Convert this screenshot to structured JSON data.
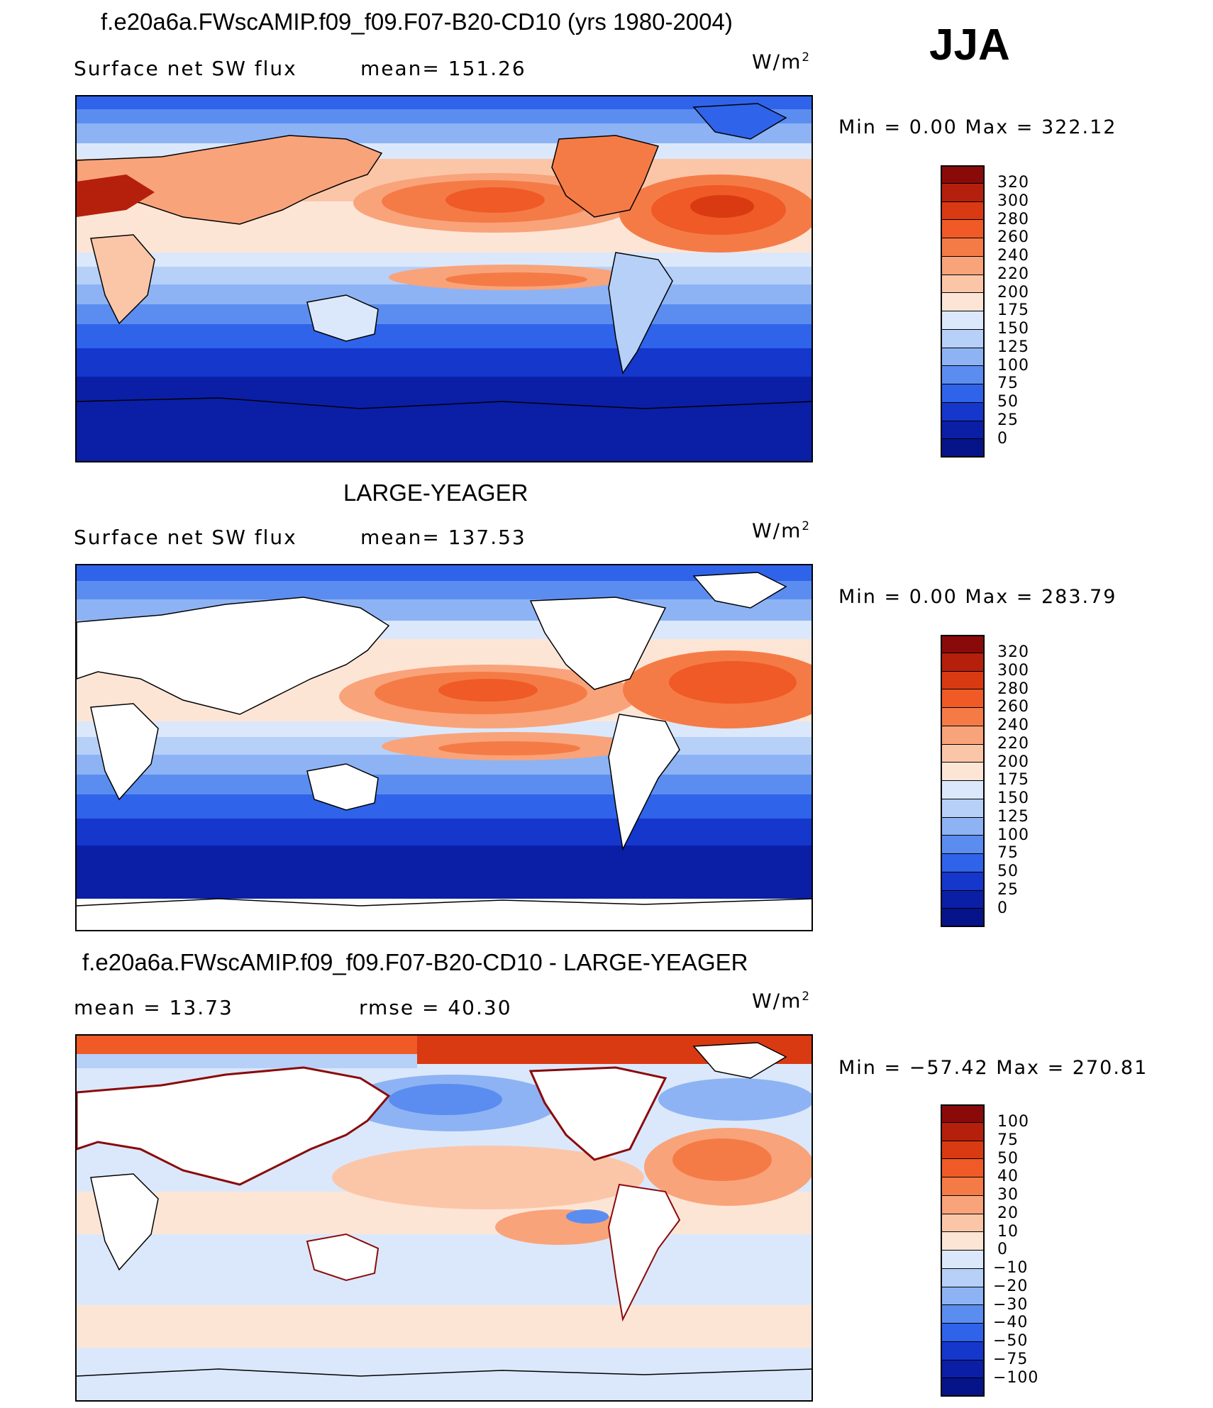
{
  "header": {
    "season": "JJA"
  },
  "panels": [
    {
      "title": "f.e20a6a.FWscAMIP.f09_f09.F07-B20-CD10 (yrs 1980-2004)",
      "left_label": "Surface  net  SW  flux",
      "stat_label": "mean=  151.26",
      "units": "W/m",
      "units_sup": "2",
      "minmax": "Min  =     0.00  Max  =  322.12",
      "colorbar": {
        "labels": [
          "320",
          "300",
          "280",
          "260",
          "240",
          "220",
          "200",
          "175",
          "150",
          "125",
          "100",
          "75",
          "50",
          "25",
          "0"
        ],
        "colors": [
          "#8a0a0a",
          "#b4200b",
          "#d93a12",
          "#ef5a26",
          "#f57b46",
          "#f9a37a",
          "#fbc6a8",
          "#fde5d6",
          "#dbe8fb",
          "#b6d0f8",
          "#8db3f4",
          "#5b8df0",
          "#2f63ea",
          "#1537cc",
          "#0a1fa6",
          "#061489"
        ]
      }
    },
    {
      "title": "LARGE-YEAGER",
      "left_label": "Surface  net  SW  flux",
      "stat_label": "mean=  137.53",
      "units": "W/m",
      "units_sup": "2",
      "minmax": "Min  =     0.00  Max  =  283.79",
      "colorbar": {
        "labels": [
          "320",
          "300",
          "280",
          "260",
          "240",
          "220",
          "200",
          "175",
          "150",
          "125",
          "100",
          "75",
          "50",
          "25",
          "0"
        ],
        "colors": [
          "#8a0a0a",
          "#b4200b",
          "#d93a12",
          "#ef5a26",
          "#f57b46",
          "#f9a37a",
          "#fbc6a8",
          "#fde5d6",
          "#dbe8fb",
          "#b6d0f8",
          "#8db3f4",
          "#5b8df0",
          "#2f63ea",
          "#1537cc",
          "#0a1fa6",
          "#061489"
        ]
      }
    },
    {
      "title": "f.e20a6a.FWscAMIP.f09_f09.F07-B20-CD10 - LARGE-YEAGER",
      "left_label": "mean  =     13.73",
      "stat_label": "rmse  =     40.30",
      "units": "W/m",
      "units_sup": "2",
      "minmax": "Min  = −57.42  Max  =  270.81",
      "colorbar": {
        "labels": [
          "100",
          "75",
          "50",
          "40",
          "30",
          "20",
          "10",
          "0",
          "−10",
          "−20",
          "−30",
          "−40",
          "−50",
          "−75",
          "−100"
        ],
        "colors": [
          "#8a0a0a",
          "#b4200b",
          "#d93a12",
          "#ef5a26",
          "#f57b46",
          "#f9a37a",
          "#fbc6a8",
          "#fde5d6",
          "#dbe8fb",
          "#b6d0f8",
          "#8db3f4",
          "#5b8df0",
          "#2f63ea",
          "#1537cc",
          "#0a1fa6",
          "#061489"
        ]
      }
    }
  ]
}
